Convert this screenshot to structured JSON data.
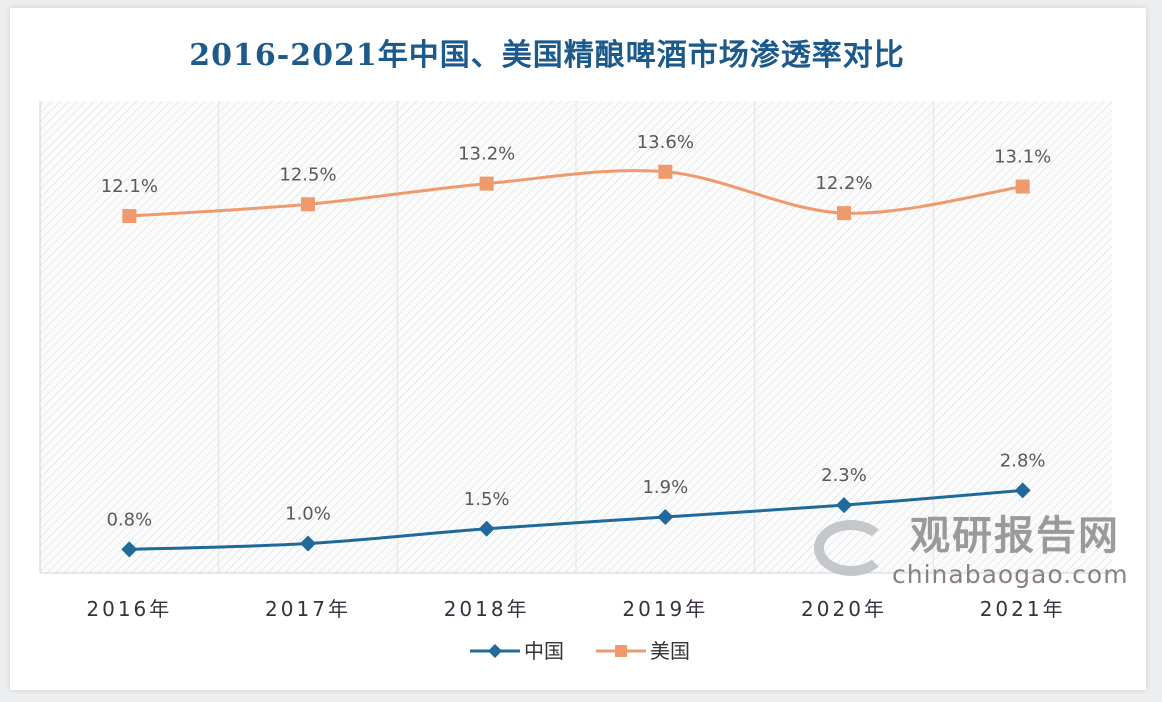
{
  "chart_data": {
    "type": "line",
    "title": "2016-2021年中国、美国精酿啤酒市场渗透率对比",
    "categories": [
      "2016年",
      "2017年",
      "2018年",
      "2019年",
      "2020年",
      "2021年"
    ],
    "series": [
      {
        "name": "中国",
        "values": [
          0.8,
          1.0,
          1.5,
          1.9,
          2.3,
          2.8
        ],
        "labels": [
          "0.8%",
          "1.0%",
          "1.5%",
          "1.9%",
          "2.3%",
          "2.8%"
        ],
        "color": "#1f6a9a",
        "marker": "diamond"
      },
      {
        "name": "美国",
        "values": [
          12.1,
          12.5,
          13.2,
          13.6,
          12.2,
          13.1
        ],
        "labels": [
          "12.1%",
          "12.5%",
          "13.2%",
          "13.6%",
          "12.2%",
          "13.1%"
        ],
        "color": "#ef9a6c",
        "marker": "square"
      }
    ],
    "ylim": [
      0,
      16
    ],
    "xlabel": "",
    "ylabel": "",
    "grid": "vertical category dividers",
    "legend": "bottom",
    "background": "hatched"
  },
  "watermark": {
    "cn": "观研报告网",
    "en": "chinabaogao.com"
  }
}
